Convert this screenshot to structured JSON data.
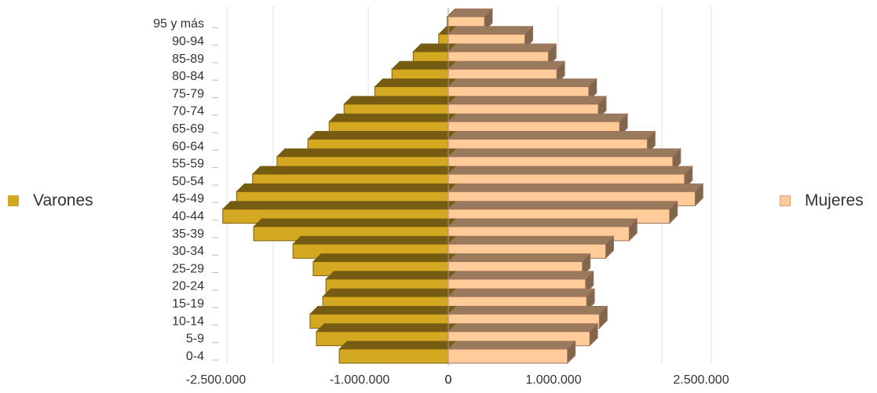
{
  "chart_data": {
    "type": "bar",
    "orientation": "horizontal",
    "subtype": "population-pyramid-3d",
    "title": "",
    "xlabel": "",
    "ylabel": "",
    "categories": [
      "0-4",
      "5-9",
      "10-14",
      "15-19",
      "20-24",
      "25-29",
      "30-34",
      "35-39",
      "40-44",
      "45-49",
      "50-54",
      "55-59",
      "60-64",
      "65-69",
      "70-74",
      "75-79",
      "80-84",
      "85-89",
      "90-94",
      "95 y más"
    ],
    "series": [
      {
        "name": "Varones",
        "color": "#d4a820",
        "values": [
          -1025000,
          -1240000,
          -1300000,
          -1180000,
          -1150000,
          -1270000,
          -1460000,
          -1830000,
          -2120000,
          -1990000,
          -1840000,
          -1610000,
          -1320000,
          -1120000,
          -980000,
          -690000,
          -530000,
          -330000,
          -90000,
          -10000
        ]
      },
      {
        "name": "Mujeres",
        "color": "#ffcc99",
        "values": [
          1120000,
          1330000,
          1420000,
          1300000,
          1290000,
          1260000,
          1480000,
          1700000,
          2080000,
          2320000,
          2220000,
          2110000,
          1870000,
          1610000,
          1410000,
          1320000,
          1020000,
          940000,
          720000,
          340000
        ]
      }
    ],
    "x_ticks": [
      "-2.500.000",
      "-1.000.000",
      "0",
      "0",
      "1.000.000",
      "2.500.000"
    ],
    "legend": {
      "left": "Varones",
      "right": "Mujeres"
    },
    "grid": true,
    "legend_placement": "left and right"
  }
}
